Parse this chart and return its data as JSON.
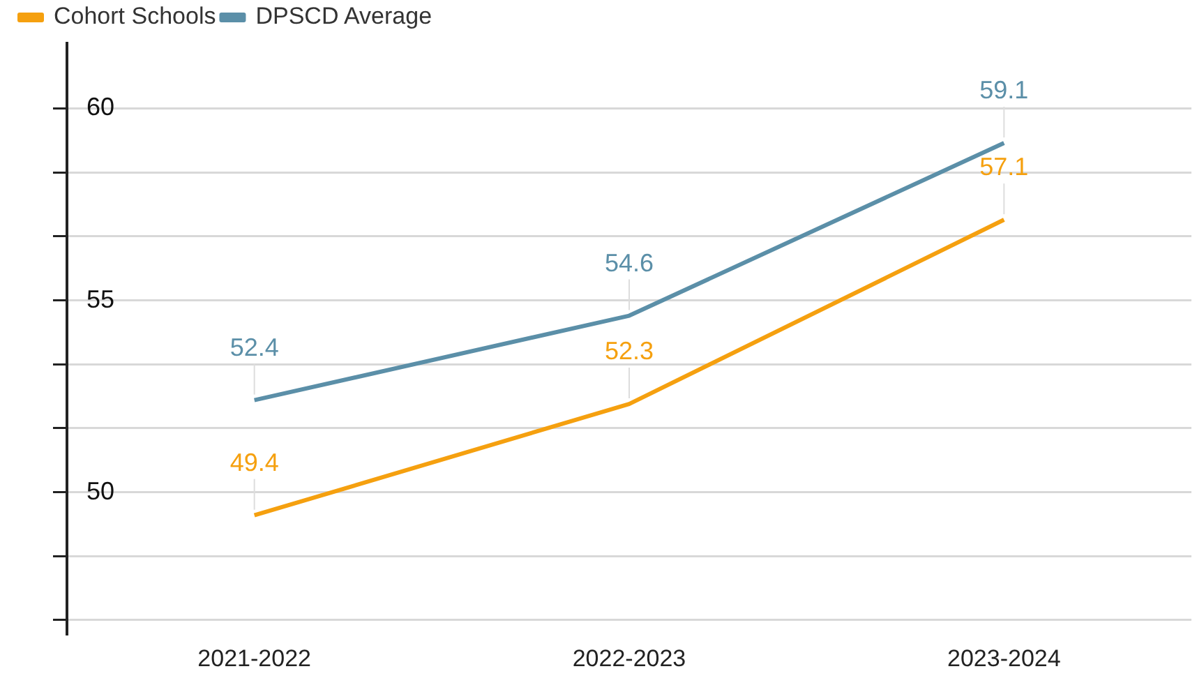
{
  "chart_data": {
    "type": "line",
    "categories": [
      "2021-2022",
      "2022-2023",
      "2023-2024"
    ],
    "series": [
      {
        "name": "Cohort Schools",
        "color": "#f5a00f",
        "values": [
          49.4,
          52.3,
          57.1
        ]
      },
      {
        "name": "DPSCD Average",
        "color": "#5b8fa8",
        "values": [
          52.4,
          54.6,
          59.1
        ]
      }
    ],
    "ylim": [
      46.3,
      61.7
    ],
    "yticks": [
      {
        "value": 46.67,
        "label": null
      },
      {
        "value": 48.33,
        "label": null
      },
      50,
      {
        "value": 51.67,
        "label": null
      },
      {
        "value": 53.33,
        "label": null
      },
      55,
      {
        "value": 56.67,
        "label": null
      },
      {
        "value": 58.33,
        "label": null
      },
      60
    ],
    "grid": "y",
    "legend": "top left",
    "data_labels": true,
    "marker": "none",
    "line_style": "solid"
  }
}
